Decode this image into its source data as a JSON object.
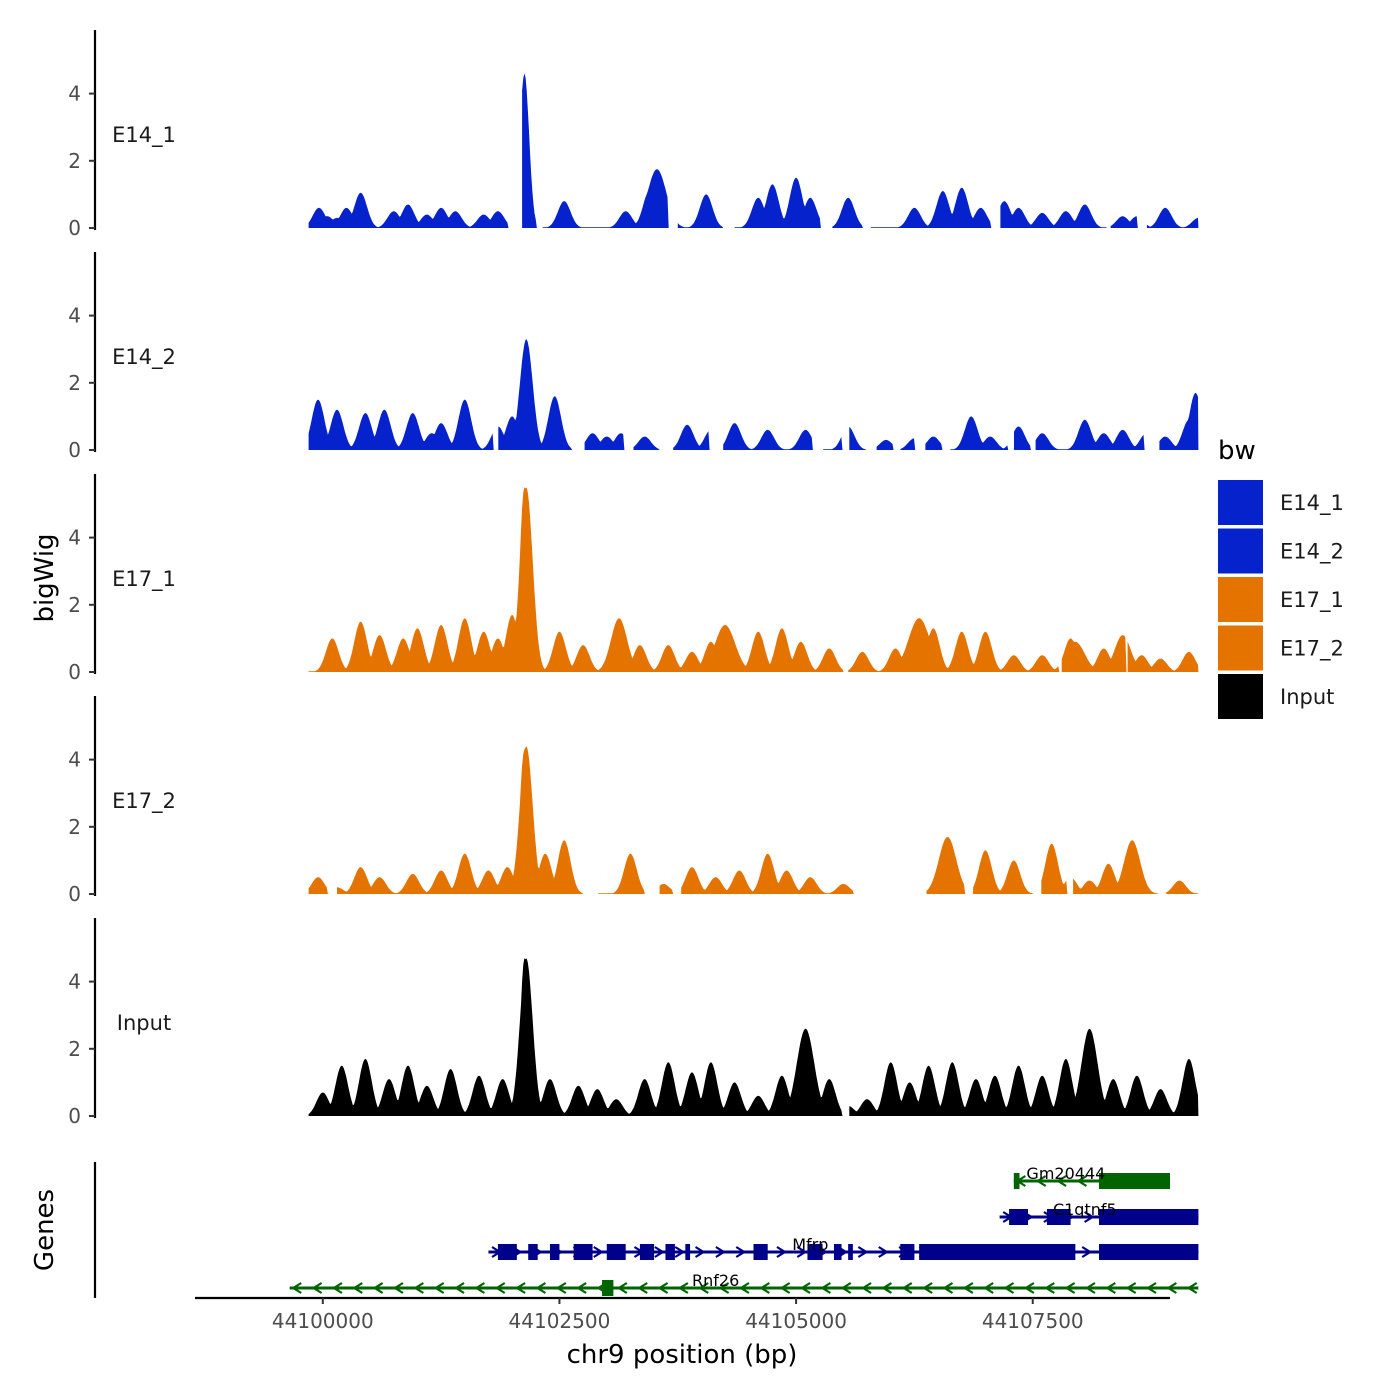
{
  "chart_data": {
    "type": "area",
    "ylabel": "bigWig",
    "xlabel": "chr9 position (bp)",
    "genes_label": "Genes",
    "ylim": [
      0,
      5.9
    ],
    "y_ticks": [
      0,
      2,
      4
    ],
    "xlim": [
      44098650,
      44108950
    ],
    "x_ticks": [
      {
        "value": 44100000,
        "label": "44100000"
      },
      {
        "value": 44102500,
        "label": "44102500"
      },
      {
        "value": 44105000,
        "label": "44105000"
      },
      {
        "value": 44107500,
        "label": "44107500"
      }
    ],
    "region": [
      44099850,
      44109250
    ],
    "legend": {
      "title": "bw",
      "entries": [
        {
          "label": "E14_1",
          "color": "#0522CC"
        },
        {
          "label": "E14_2",
          "color": "#0522CC"
        },
        {
          "label": "E17_1",
          "color": "#E57300"
        },
        {
          "label": "E17_2",
          "color": "#E57300"
        },
        {
          "label": "Input",
          "color": "#000000"
        }
      ]
    },
    "series": [
      {
        "name": "E14_1",
        "color": "#0522CC",
        "peaks": [
          [
            44099960,
            0.6
          ],
          [
            44100050,
            0.35
          ],
          [
            44100150,
            0.3
          ],
          [
            44100250,
            0.6
          ],
          [
            44100400,
            1.05
          ],
          [
            44100750,
            0.5
          ],
          [
            44100900,
            0.7
          ],
          [
            44101100,
            0.4
          ],
          [
            44101250,
            0.6
          ],
          [
            44101400,
            0.5
          ],
          [
            44101700,
            0.4
          ],
          [
            44101850,
            0.5
          ],
          [
            44102100,
            0.3
          ],
          [
            44102550,
            0.8
          ],
          [
            44103200,
            0.5
          ],
          [
            44103450,
            1.1
          ],
          [
            44104050,
            1.0
          ],
          [
            44104600,
            0.9
          ],
          [
            44104750,
            1.3
          ],
          [
            44105000,
            1.5
          ],
          [
            44105150,
            0.9
          ],
          [
            44105550,
            0.9
          ],
          [
            44106250,
            0.6
          ],
          [
            44106550,
            1.1
          ],
          [
            44106750,
            1.2
          ],
          [
            44106950,
            0.6
          ],
          [
            44107200,
            0.8
          ],
          [
            44107350,
            0.6
          ],
          [
            44107600,
            0.45
          ],
          [
            44107850,
            0.5
          ],
          [
            44108050,
            0.7
          ],
          [
            44108450,
            0.35
          ],
          [
            44108600,
            0.35
          ],
          [
            44108900,
            0.6
          ],
          [
            44109250,
            0.3
          ]
        ],
        "spikes": [
          [
            44102130,
            4.6,
            70
          ],
          [
            44103530,
            1.75,
            140
          ]
        ],
        "gaps": [
          [
            44100050,
            44100050
          ],
          [
            44101960,
            44102100
          ],
          [
            44102260,
            44102320
          ],
          [
            44103650,
            44103750
          ],
          [
            44104220,
            44104350
          ],
          [
            44105250,
            44105380
          ],
          [
            44105700,
            44105780
          ],
          [
            44107050,
            44107150
          ],
          [
            44108280,
            44108320
          ],
          [
            44108600,
            44108700
          ]
        ]
      },
      {
        "name": "E14_2",
        "color": "#0522CC",
        "peaks": [
          [
            44099950,
            1.5
          ],
          [
            44100150,
            1.2
          ],
          [
            44100450,
            1.1
          ],
          [
            44100650,
            1.2
          ],
          [
            44100950,
            1.1
          ],
          [
            44101150,
            0.5
          ],
          [
            44101250,
            0.8
          ],
          [
            44101500,
            1.5
          ],
          [
            44101850,
            0.7
          ],
          [
            44102000,
            1.0
          ],
          [
            44102150,
            3.3
          ],
          [
            44102450,
            1.6
          ],
          [
            44102850,
            0.5
          ],
          [
            44103000,
            0.4
          ],
          [
            44103150,
            0.5
          ],
          [
            44103400,
            0.4
          ],
          [
            44103850,
            0.75
          ],
          [
            44104100,
            0.6
          ],
          [
            44104350,
            0.8
          ],
          [
            44104700,
            0.6
          ],
          [
            44105100,
            0.6
          ],
          [
            44105550,
            0.7
          ],
          [
            44105950,
            0.3
          ],
          [
            44106250,
            0.35
          ],
          [
            44106450,
            0.4
          ],
          [
            44106850,
            1.0
          ],
          [
            44107050,
            0.4
          ],
          [
            44107350,
            0.7
          ],
          [
            44107600,
            0.5
          ],
          [
            44108050,
            0.9
          ],
          [
            44108250,
            0.5
          ],
          [
            44108450,
            0.6
          ],
          [
            44108700,
            0.5
          ],
          [
            44108900,
            0.4
          ],
          [
            44109150,
            0.9
          ],
          [
            44109220,
            1.7
          ]
        ],
        "spikes": [],
        "gaps": [
          [
            44101800,
            44101850
          ],
          [
            44102630,
            44102760
          ],
          [
            44103180,
            44103280
          ],
          [
            44103550,
            44103700
          ],
          [
            44104080,
            44104220
          ],
          [
            44105170,
            44105280
          ],
          [
            44105480,
            44105560
          ],
          [
            44105740,
            44105850
          ],
          [
            44106020,
            44106100
          ],
          [
            44106250,
            44106360
          ],
          [
            44106540,
            44106620
          ],
          [
            44107230,
            44107300
          ],
          [
            44107480,
            44107530
          ],
          [
            44108680,
            44108830
          ]
        ]
      },
      {
        "name": "E17_1",
        "color": "#E57300",
        "peaks": [
          [
            44100100,
            1.0
          ],
          [
            44100400,
            1.5
          ],
          [
            44100600,
            1.1
          ],
          [
            44100850,
            1.0
          ],
          [
            44101000,
            1.3
          ],
          [
            44101250,
            1.4
          ],
          [
            44101500,
            1.6
          ],
          [
            44101700,
            1.2
          ],
          [
            44101850,
            1.0
          ],
          [
            44102000,
            1.7
          ],
          [
            44102150,
            5.5
          ],
          [
            44102500,
            1.2
          ],
          [
            44102750,
            0.8
          ],
          [
            44103100,
            1.3
          ],
          [
            44103350,
            0.8
          ],
          [
            44103650,
            0.8
          ],
          [
            44103900,
            0.6
          ],
          [
            44104100,
            0.9
          ],
          [
            44104300,
            1.0
          ],
          [
            44104600,
            1.2
          ],
          [
            44104850,
            1.3
          ],
          [
            44105050,
            0.9
          ],
          [
            44105350,
            0.7
          ],
          [
            44105700,
            0.6
          ],
          [
            44106050,
            0.7
          ],
          [
            44106300,
            1.1
          ],
          [
            44106450,
            1.3
          ],
          [
            44106750,
            1.2
          ],
          [
            44107000,
            1.2
          ],
          [
            44107300,
            0.5
          ],
          [
            44107600,
            0.5
          ],
          [
            44107900,
            1.0
          ],
          [
            44108250,
            0.7
          ],
          [
            44108450,
            1.0
          ],
          [
            44108650,
            0.5
          ],
          [
            44108850,
            0.4
          ],
          [
            44109150,
            0.6
          ]
        ],
        "spikes": [
          [
            44102130,
            5.5,
            70
          ],
          [
            44103130,
            1.6,
            120
          ],
          [
            44104250,
            1.4,
            150
          ],
          [
            44106300,
            1.6,
            160
          ],
          [
            44107950,
            0.9,
            140
          ],
          [
            44108450,
            1.1,
            120
          ]
        ],
        "gaps": [
          [
            44105500,
            44105550
          ],
          [
            44107770,
            44107800
          ],
          [
            44108480,
            44108500
          ]
        ]
      },
      {
        "name": "E17_2",
        "color": "#E57300",
        "peaks": [
          [
            44099950,
            0.5
          ],
          [
            44100150,
            0.2
          ],
          [
            44100400,
            0.8
          ],
          [
            44100600,
            0.5
          ],
          [
            44100950,
            0.6
          ],
          [
            44101250,
            0.7
          ],
          [
            44101500,
            1.2
          ],
          [
            44101750,
            0.7
          ],
          [
            44101950,
            0.8
          ],
          [
            44102150,
            4.4
          ],
          [
            44102350,
            1.2
          ],
          [
            44102550,
            1.6
          ],
          [
            44103250,
            1.2
          ],
          [
            44103600,
            0.3
          ],
          [
            44103900,
            0.8
          ],
          [
            44104150,
            0.5
          ],
          [
            44104400,
            0.7
          ],
          [
            44104700,
            1.2
          ],
          [
            44104900,
            0.7
          ],
          [
            44105150,
            0.5
          ],
          [
            44105500,
            0.3
          ],
          [
            44106500,
            0.3
          ],
          [
            44106600,
            1.6
          ],
          [
            44107000,
            1.3
          ],
          [
            44107300,
            1.0
          ],
          [
            44107700,
            1.5
          ],
          [
            44107900,
            0.5
          ],
          [
            44108100,
            0.4
          ],
          [
            44108300,
            0.9
          ],
          [
            44108550,
            1.5
          ],
          [
            44109050,
            0.4
          ]
        ],
        "spikes": [
          [
            44102130,
            4.3,
            70
          ],
          [
            44106600,
            1.7,
            130
          ],
          [
            44108550,
            1.6,
            120
          ]
        ],
        "gaps": [
          [
            44100050,
            44100150
          ],
          [
            44102750,
            44102900
          ],
          [
            44103400,
            44103550
          ],
          [
            44103700,
            44103780
          ],
          [
            44105600,
            44106370
          ],
          [
            44106780,
            44106870
          ],
          [
            44107500,
            44107590
          ],
          [
            44107860,
            44107920
          ],
          [
            44108820,
            44108900
          ]
        ]
      },
      {
        "name": "Input",
        "color": "#000000",
        "peaks": [
          [
            44100000,
            0.7
          ],
          [
            44100200,
            1.5
          ],
          [
            44100450,
            1.7
          ],
          [
            44100700,
            1.1
          ],
          [
            44100900,
            1.5
          ],
          [
            44101100,
            0.9
          ],
          [
            44101350,
            1.4
          ],
          [
            44101650,
            1.2
          ],
          [
            44101900,
            1.1
          ],
          [
            44102150,
            4.7
          ],
          [
            44102400,
            1.1
          ],
          [
            44102700,
            0.9
          ],
          [
            44102900,
            0.8
          ],
          [
            44103100,
            0.5
          ],
          [
            44103400,
            1.1
          ],
          [
            44103650,
            1.6
          ],
          [
            44103900,
            1.3
          ],
          [
            44104100,
            1.6
          ],
          [
            44104350,
            1.0
          ],
          [
            44104600,
            0.6
          ],
          [
            44104850,
            1.2
          ],
          [
            44105100,
            2.5
          ],
          [
            44105350,
            1.1
          ],
          [
            44105550,
            0.3
          ],
          [
            44105750,
            0.5
          ],
          [
            44106000,
            1.6
          ],
          [
            44106200,
            1.0
          ],
          [
            44106400,
            1.5
          ],
          [
            44106650,
            1.6
          ],
          [
            44106900,
            1.1
          ],
          [
            44107100,
            1.2
          ],
          [
            44107350,
            1.5
          ],
          [
            44107600,
            1.2
          ],
          [
            44107850,
            1.7
          ],
          [
            44108100,
            2.6
          ],
          [
            44108350,
            1.1
          ],
          [
            44108600,
            1.2
          ],
          [
            44108850,
            0.8
          ],
          [
            44109150,
            1.7
          ]
        ],
        "spikes": [
          [
            44102130,
            4.7,
            60
          ],
          [
            44105100,
            2.6,
            130
          ],
          [
            44108100,
            2.6,
            120
          ]
        ],
        "gaps": [
          [
            44105480,
            44105560
          ]
        ]
      }
    ],
    "genes": [
      {
        "name": "Gm20444",
        "color": "#006400",
        "row": 0,
        "label_x": 44107850,
        "strand": "-",
        "start": 44107300,
        "end": 44108950,
        "exons": [
          [
            44107300,
            44107360
          ],
          [
            44108200,
            44108950
          ]
        ]
      },
      {
        "name": "C1qtnf5",
        "color": "#00008B",
        "row": 1,
        "label_x": 44108050,
        "strand": "+",
        "start": 44107150,
        "end": 44109250,
        "exons": [
          [
            44107250,
            44107450
          ],
          [
            44107650,
            44107900
          ],
          [
            44108200,
            44109250
          ]
        ]
      },
      {
        "name": "Mfrp",
        "color": "#00008B",
        "row": 2,
        "label_x": 44105150,
        "strand": "+",
        "start": 44101750,
        "end": 44109250,
        "exons": [
          [
            44101850,
            44102050
          ],
          [
            44102170,
            44102270
          ],
          [
            44102400,
            44102500
          ],
          [
            44102650,
            44102850
          ],
          [
            44103000,
            44103200
          ],
          [
            44103350,
            44103500
          ],
          [
            44103620,
            44103720
          ],
          [
            44103830,
            44103880
          ],
          [
            44104550,
            44104700
          ],
          [
            44105120,
            44105280
          ],
          [
            44105400,
            44105480
          ],
          [
            44105550,
            44105600
          ],
          [
            44106100,
            44106250
          ],
          [
            44106300,
            44107950
          ],
          [
            44108200,
            44109250
          ]
        ]
      },
      {
        "name": "Rnf26",
        "color": "#006400",
        "row": 3,
        "label_x": 44104150,
        "strand": "-",
        "start": 44099650,
        "end": 44109250,
        "exons": [
          [
            44102950,
            44103070
          ]
        ]
      }
    ]
  }
}
